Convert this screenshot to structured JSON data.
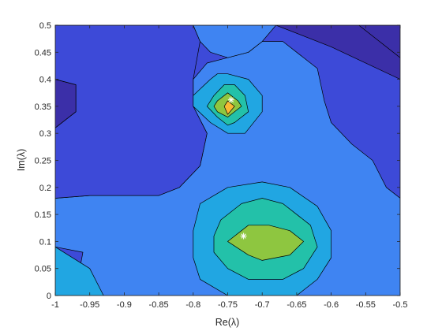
{
  "chart_data": {
    "type": "contour",
    "title": "",
    "xlabel": "Re(λ)",
    "ylabel": "Im(λ)",
    "xlim": [
      -1,
      -0.5
    ],
    "ylim": [
      0,
      0.5
    ],
    "xticks": [
      -1,
      -0.95,
      -0.9,
      -0.85,
      -0.8,
      -0.75,
      -0.7,
      -0.65,
      -0.6,
      -0.55,
      -0.5
    ],
    "xtick_labels": [
      "-1",
      "-0.95",
      "-0.9",
      "-0.85",
      "-0.8",
      "-0.75",
      "-0.7",
      "-0.65",
      "-0.6",
      "-0.55",
      "-0.5"
    ],
    "yticks": [
      0,
      0.05,
      0.1,
      0.15,
      0.2,
      0.25,
      0.3,
      0.35,
      0.4,
      0.45,
      0.5
    ],
    "ytick_labels": [
      "0",
      "0.05",
      "0.1",
      "0.15",
      "0.2",
      "0.25",
      "0.3",
      "0.35",
      "0.4",
      "0.45",
      "0.5"
    ],
    "grid": false,
    "legend": "none",
    "colormap": "parula",
    "levels": [
      {
        "name": "level-1",
        "color": "#3b2fa8"
      },
      {
        "name": "level-2",
        "color": "#3d4ad8"
      },
      {
        "name": "level-3",
        "color": "#3f84f2"
      },
      {
        "name": "level-4",
        "color": "#21a6e2"
      },
      {
        "name": "level-5",
        "color": "#23c1a9"
      },
      {
        "name": "level-6",
        "color": "#8ec640"
      },
      {
        "name": "level-7",
        "color": "#f9b933"
      }
    ],
    "regions": [
      {
        "level": 0,
        "points": [
          [
            -1,
            0.5
          ],
          [
            -0.5,
            0.5
          ],
          [
            -0.5,
            0
          ],
          [
            -1,
            0
          ]
        ]
      },
      {
        "level": 0,
        "points": [
          [
            -0.505,
            0.5
          ],
          [
            -0.5,
            0.5
          ],
          [
            -0.5,
            0.44
          ]
        ]
      },
      {
        "level": 1,
        "points": [
          [
            -1,
            0.18
          ],
          [
            -1,
            0
          ],
          [
            -0.5,
            0
          ],
          [
            -0.5,
            0.4
          ],
          [
            -0.6,
            0.46
          ],
          [
            -0.68,
            0.5
          ],
          [
            -0.8,
            0.5
          ],
          [
            -0.9,
            0.5
          ],
          [
            -1,
            0.5
          ],
          [
            -1,
            0.4
          ],
          [
            -0.97,
            0.39
          ],
          [
            -0.97,
            0.34
          ],
          [
            -1,
            0.31
          ]
        ]
      },
      {
        "level": 0,
        "points": [
          [
            -1,
            0.5
          ],
          [
            -0.9,
            0.5
          ],
          [
            -0.84,
            0.5
          ],
          [
            -0.8,
            0.5
          ],
          [
            -0.7,
            0.5
          ],
          [
            -0.65,
            0.5
          ],
          [
            -0.56,
            0.5
          ],
          [
            -0.5,
            0.5
          ],
          [
            -0.5,
            0.5
          ]
        ]
      },
      {
        "level": 2,
        "points": [
          [
            -1,
            0.18
          ],
          [
            -0.95,
            0.185
          ],
          [
            -0.85,
            0.185
          ],
          [
            -0.82,
            0.2
          ],
          [
            -0.79,
            0.24
          ],
          [
            -0.78,
            0.3
          ],
          [
            -0.8,
            0.35
          ],
          [
            -0.8,
            0.4
          ],
          [
            -0.78,
            0.43
          ],
          [
            -0.75,
            0.44
          ],
          [
            -0.72,
            0.45
          ],
          [
            -0.7,
            0.47
          ],
          [
            -0.67,
            0.47
          ],
          [
            -0.62,
            0.42
          ],
          [
            -0.61,
            0.36
          ],
          [
            -0.6,
            0.32
          ],
          [
            -0.57,
            0.28
          ],
          [
            -0.54,
            0.25
          ],
          [
            -0.52,
            0.2
          ],
          [
            -0.5,
            0.18
          ],
          [
            -0.5,
            0
          ],
          [
            -0.6,
            0
          ],
          [
            -0.64,
            0
          ],
          [
            -0.9,
            0
          ],
          [
            -0.93,
            0
          ],
          [
            -0.965,
            0.045
          ],
          [
            -0.96,
            0.08
          ],
          [
            -1,
            0.09
          ]
        ]
      },
      {
        "level": 1,
        "points": [
          [
            -1,
            0.18
          ],
          [
            -1,
            0.31
          ],
          [
            -0.97,
            0.34
          ],
          [
            -0.97,
            0.39
          ],
          [
            -1,
            0.4
          ],
          [
            -1,
            0.5
          ],
          [
            -0.9,
            0.5
          ],
          [
            -0.84,
            0.5
          ],
          [
            -0.8,
            0.5
          ],
          [
            -0.79,
            0.47
          ],
          [
            -0.8,
            0.4
          ],
          [
            -0.8,
            0.35
          ],
          [
            -0.78,
            0.3
          ],
          [
            -0.79,
            0.24
          ],
          [
            -0.82,
            0.2
          ],
          [
            -0.85,
            0.185
          ],
          [
            -0.95,
            0.185
          ]
        ]
      },
      {
        "level": 2,
        "points": [
          [
            -0.8,
            0.5
          ],
          [
            -0.79,
            0.47
          ],
          [
            -0.775,
            0.45
          ],
          [
            -0.75,
            0.44
          ],
          [
            -0.72,
            0.45
          ],
          [
            -0.7,
            0.47
          ],
          [
            -0.68,
            0.5
          ]
        ]
      },
      {
        "level": 0,
        "points": [
          [
            -0.56,
            0.5
          ],
          [
            -0.5,
            0.44
          ],
          [
            -0.5,
            0.5
          ]
        ]
      },
      {
        "level": 3,
        "points": [
          [
            -0.775,
            0.4
          ],
          [
            -0.765,
            0.41
          ],
          [
            -0.75,
            0.41
          ],
          [
            -0.72,
            0.4
          ],
          [
            -0.7,
            0.37
          ],
          [
            -0.7,
            0.34
          ],
          [
            -0.725,
            0.3
          ],
          [
            -0.75,
            0.3
          ],
          [
            -0.775,
            0.32
          ],
          [
            -0.8,
            0.35
          ],
          [
            -0.8,
            0.37
          ]
        ]
      },
      {
        "level": 4,
        "points": [
          [
            -0.77,
            0.37
          ],
          [
            -0.755,
            0.39
          ],
          [
            -0.74,
            0.39
          ],
          [
            -0.725,
            0.37
          ],
          [
            -0.72,
            0.34
          ],
          [
            -0.74,
            0.32
          ],
          [
            -0.75,
            0.315
          ],
          [
            -0.765,
            0.33
          ],
          [
            -0.78,
            0.35
          ]
        ]
      },
      {
        "level": 5,
        "points": [
          [
            -0.765,
            0.36
          ],
          [
            -0.75,
            0.375
          ],
          [
            -0.735,
            0.36
          ],
          [
            -0.73,
            0.35
          ],
          [
            -0.75,
            0.33
          ],
          [
            -0.765,
            0.34
          ],
          [
            -0.77,
            0.35
          ]
        ]
      },
      {
        "level": 6,
        "points": [
          [
            -0.755,
            0.35
          ],
          [
            -0.75,
            0.36
          ],
          [
            -0.74,
            0.35
          ],
          [
            -0.75,
            0.335
          ]
        ]
      },
      {
        "level": 3,
        "points": [
          [
            -0.97,
            0
          ],
          [
            -0.93,
            0
          ],
          [
            -0.95,
            0.05
          ],
          [
            -1,
            0.09
          ],
          [
            -1,
            0
          ]
        ]
      },
      {
        "level": 3,
        "points": [
          [
            -0.75,
            0.2
          ],
          [
            -0.7,
            0.21
          ],
          [
            -0.66,
            0.2
          ],
          [
            -0.62,
            0.165
          ],
          [
            -0.6,
            0.12
          ],
          [
            -0.6,
            0.07
          ],
          [
            -0.62,
            0.03
          ],
          [
            -0.65,
            0
          ],
          [
            -0.75,
            0
          ],
          [
            -0.79,
            0.03
          ],
          [
            -0.8,
            0.07
          ],
          [
            -0.8,
            0.12
          ],
          [
            -0.79,
            0.17
          ]
        ]
      },
      {
        "level": 4,
        "points": [
          [
            -0.73,
            0.17
          ],
          [
            -0.7,
            0.18
          ],
          [
            -0.67,
            0.17
          ],
          [
            -0.63,
            0.13
          ],
          [
            -0.62,
            0.09
          ],
          [
            -0.64,
            0.05
          ],
          [
            -0.67,
            0.03
          ],
          [
            -0.72,
            0.03
          ],
          [
            -0.75,
            0.05
          ],
          [
            -0.77,
            0.08
          ],
          [
            -0.77,
            0.11
          ],
          [
            -0.76,
            0.14
          ]
        ]
      },
      {
        "level": 5,
        "points": [
          [
            -0.72,
            0.13
          ],
          [
            -0.69,
            0.13
          ],
          [
            -0.66,
            0.12
          ],
          [
            -0.64,
            0.1
          ],
          [
            -0.66,
            0.075
          ],
          [
            -0.7,
            0.065
          ],
          [
            -0.72,
            0.075
          ],
          [
            -0.75,
            0.1
          ]
        ]
      }
    ],
    "markers": [
      {
        "x": -0.745,
        "y": 0.362,
        "symbol": "*",
        "color": "#ffffff"
      },
      {
        "x": -0.727,
        "y": 0.11,
        "symbol": "*",
        "color": "#ffffff"
      }
    ]
  }
}
